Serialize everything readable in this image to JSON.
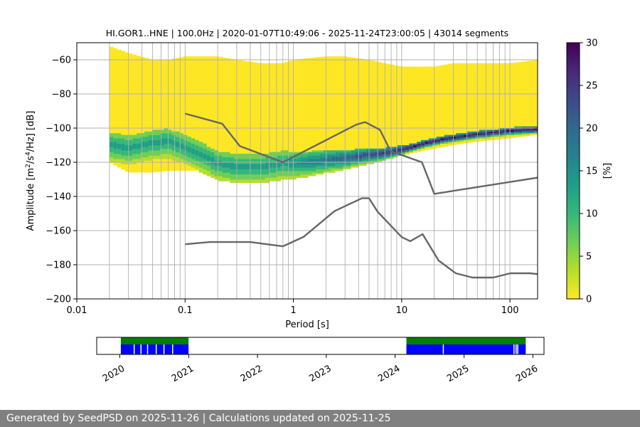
{
  "chart_data": [
    {
      "type": "heatmap",
      "title": "HI.GOR1..HNE | 100.0Hz | 2020-01-07T10:49:06 - 2025-11-24T23:00:05 | 43014 segments",
      "xlabel": "Period [s]",
      "ylabel_parts": [
        "Amplitude [m",
        "2",
        "/s",
        "4",
        "/Hz] [dB]"
      ],
      "xscale": "log",
      "xlim": [
        0.01,
        180
      ],
      "ylim": [
        -200,
        -50
      ],
      "x_ticks": [
        0.01,
        0.1,
        1,
        10,
        100
      ],
      "x_tick_labels": [
        "0.01",
        "0.1",
        "1",
        "10",
        "100"
      ],
      "y_ticks": [
        -200,
        -180,
        -160,
        -140,
        -120,
        -100,
        -80,
        -60
      ],
      "y_tick_labels": [
        "−200",
        "−180",
        "−160",
        "−140",
        "−120",
        "−100",
        "−80",
        "−60"
      ],
      "grid": true,
      "psd_mode": {
        "x": [
          0.02,
          0.03,
          0.05,
          0.07,
          0.1,
          0.15,
          0.2,
          0.3,
          0.5,
          0.8,
          1,
          1.5,
          2,
          3,
          5,
          7,
          10,
          15,
          20,
          30,
          50,
          100,
          180
        ],
        "y": [
          -110,
          -112,
          -109,
          -108,
          -112,
          -117,
          -121,
          -123,
          -123,
          -121,
          -121,
          -120,
          -119,
          -118,
          -116,
          -115,
          -113,
          -110,
          -108,
          -106,
          -104,
          -102,
          -101
        ]
      },
      "psd_band": {
        "x": [
          0.02,
          0.03,
          0.05,
          0.07,
          0.1,
          0.2,
          0.3,
          0.5,
          0.8,
          1,
          2,
          3,
          5,
          7,
          10,
          20,
          30,
          50,
          100,
          180
        ],
        "upper": [
          -52,
          -56,
          -60,
          -60,
          -58,
          -58,
          -60,
          -62,
          -62,
          -60,
          -58,
          -58,
          -60,
          -62,
          -64,
          -64,
          -62,
          -62,
          -62,
          -60
        ],
        "lower": [
          -120,
          -126,
          -126,
          -125,
          -125,
          -125,
          -125,
          -125,
          -124,
          -123,
          -122,
          -121,
          -120,
          -118,
          -116,
          -112,
          -110,
          -108,
          -106,
          -104
        ]
      },
      "nhnm": {
        "x": [
          0.1,
          0.22,
          0.32,
          0.8,
          3.8,
          4.6,
          6.3,
          7.9,
          15.4,
          20,
          180
        ],
        "y": [
          -91.5,
          -97.4,
          -110.5,
          -120,
          -98,
          -96.5,
          -101,
          -113.5,
          -120,
          -138.5,
          -129
        ]
      },
      "nlnm": {
        "x": [
          0.1,
          0.17,
          0.4,
          0.8,
          1.24,
          2.4,
          4.3,
          5,
          6,
          10,
          12,
          15.6,
          21.9,
          31.6,
          45,
          70,
          101,
          154,
          180
        ],
        "y": [
          -168,
          -166.7,
          -166.7,
          -169.2,
          -163.7,
          -148.6,
          -141.1,
          -141.1,
          -149,
          -163.8,
          -166.2,
          -162.1,
          -177.5,
          -185,
          -187.5,
          -187.5,
          -185,
          -185,
          -185.5
        ]
      }
    },
    {
      "type": "colorbar",
      "label": "[%]",
      "ticks": [
        0,
        5,
        10,
        15,
        20,
        25,
        30
      ],
      "tick_labels": [
        "0",
        "5",
        "10",
        "15",
        "20",
        "25",
        "30"
      ],
      "range": [
        0,
        30
      ],
      "colormap": [
        "#fde725",
        "#b5de2b",
        "#6ece58",
        "#35b779",
        "#1f9e89",
        "#26828e",
        "#31688e",
        "#3e4989",
        "#482878",
        "#440154"
      ]
    },
    {
      "type": "timeline",
      "x_ticks": [
        "2020",
        "2021",
        "2022",
        "2023",
        "2024",
        "2025",
        "2026"
      ],
      "xlim": [
        "2019-09-01",
        "2026-03-01"
      ],
      "segments": [
        {
          "start": "2020-01-07",
          "end": "2020-12-31"
        },
        {
          "start": "2024-03-01",
          "end": "2025-11-24"
        }
      ],
      "gaps": [
        "2020-03-15",
        "2020-04-20",
        "2020-05-25",
        "2020-07-10",
        "2020-08-20",
        "2020-10-05",
        "2024-09-10",
        "2025-09-20",
        "2025-10-01",
        "2025-10-10"
      ],
      "colors": {
        "coverage": "#0000ff",
        "top_band": "#008000"
      }
    }
  ],
  "footer": {
    "text": "Generated by SeedPSD on 2025-11-26 | Calculations updated on 2025-11-25"
  },
  "colors": {
    "reference_models": "#666666",
    "grid": "#b0b0b0",
    "footer_bg": "#808080"
  }
}
